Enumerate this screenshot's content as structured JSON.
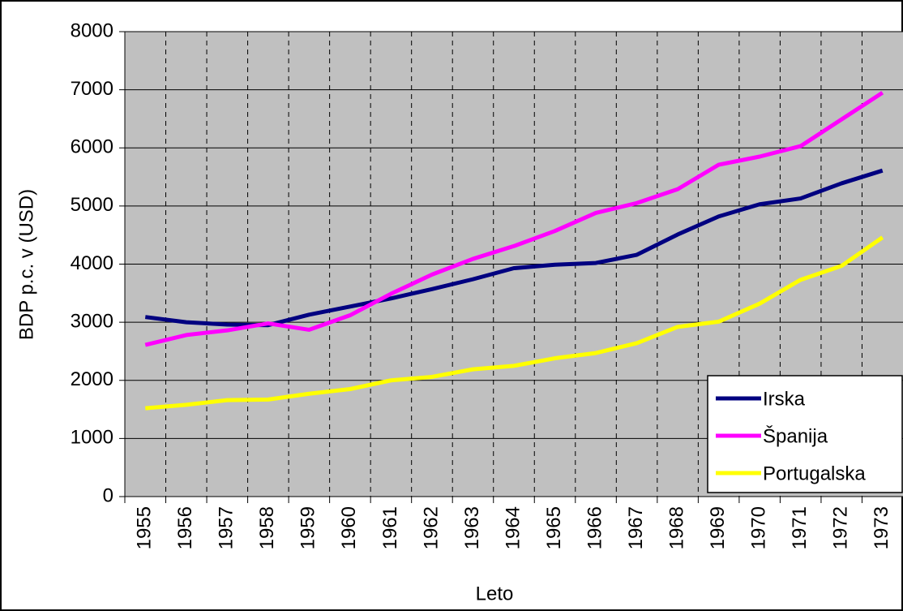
{
  "chart_data": {
    "type": "line",
    "x_label": "Leto",
    "y_label": "BDP p.c. v (USD)",
    "categories": [
      "1955",
      "1956",
      "1957",
      "1958",
      "1959",
      "1960",
      "1961",
      "1962",
      "1963",
      "1964",
      "1965",
      "1966",
      "1967",
      "1968",
      "1969",
      "1970",
      "1971",
      "1972",
      "1973"
    ],
    "series": [
      {
        "name": "Irska",
        "color": "#000080",
        "values": [
          3090,
          3000,
          2960,
          2950,
          3130,
          3270,
          3410,
          3570,
          3740,
          3930,
          3990,
          4020,
          4160,
          4510,
          4820,
          5030,
          5130,
          5390,
          5610
        ]
      },
      {
        "name": "Španija",
        "color": "#ff00ff",
        "values": [
          2610,
          2780,
          2860,
          2980,
          2870,
          3120,
          3490,
          3820,
          4090,
          4310,
          4570,
          4880,
          5050,
          5290,
          5710,
          5850,
          6030,
          6490,
          6950
        ]
      },
      {
        "name": "Portugalska",
        "color": "#ffff00",
        "values": [
          1520,
          1580,
          1660,
          1670,
          1770,
          1850,
          2000,
          2060,
          2190,
          2250,
          2380,
          2470,
          2640,
          2920,
          3010,
          3320,
          3730,
          3970,
          4460
        ]
      }
    ],
    "ylim": [
      0,
      8000
    ],
    "yticks": [
      0,
      1000,
      2000,
      3000,
      4000,
      5000,
      6000,
      7000,
      8000
    ],
    "grid": true,
    "legend": "lower right",
    "background": "#c0c0c0"
  }
}
